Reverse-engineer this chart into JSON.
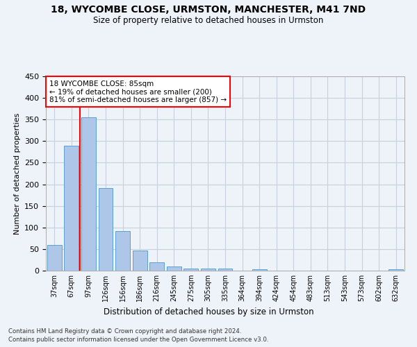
{
  "title1": "18, WYCOMBE CLOSE, URMSTON, MANCHESTER, M41 7ND",
  "title2": "Size of property relative to detached houses in Urmston",
  "xlabel": "Distribution of detached houses by size in Urmston",
  "ylabel": "Number of detached properties",
  "footnote1": "Contains HM Land Registry data © Crown copyright and database right 2024.",
  "footnote2": "Contains public sector information licensed under the Open Government Licence v3.0.",
  "annotation_line1": "18 WYCOMBE CLOSE: 85sqm",
  "annotation_line2": "← 19% of detached houses are smaller (200)",
  "annotation_line3": "81% of semi-detached houses are larger (857) →",
  "bar_labels": [
    "37sqm",
    "67sqm",
    "97sqm",
    "126sqm",
    "156sqm",
    "186sqm",
    "216sqm",
    "245sqm",
    "275sqm",
    "305sqm",
    "335sqm",
    "364sqm",
    "394sqm",
    "424sqm",
    "454sqm",
    "483sqm",
    "513sqm",
    "543sqm",
    "573sqm",
    "602sqm",
    "632sqm"
  ],
  "bar_values": [
    60,
    290,
    355,
    192,
    92,
    46,
    20,
    9,
    5,
    5,
    5,
    0,
    4,
    0,
    0,
    0,
    0,
    0,
    0,
    0,
    4
  ],
  "bar_color": "#aec6e8",
  "bar_edge_color": "#5a9fd4",
  "vline_x": 1.5,
  "vline_color": "red",
  "ylim": [
    0,
    450
  ],
  "yticks": [
    0,
    50,
    100,
    150,
    200,
    250,
    300,
    350,
    400,
    450
  ],
  "annotation_box_color": "white",
  "annotation_box_edge": "red",
  "bg_color": "#eef2f9",
  "grid_color": "#c8d0e0"
}
